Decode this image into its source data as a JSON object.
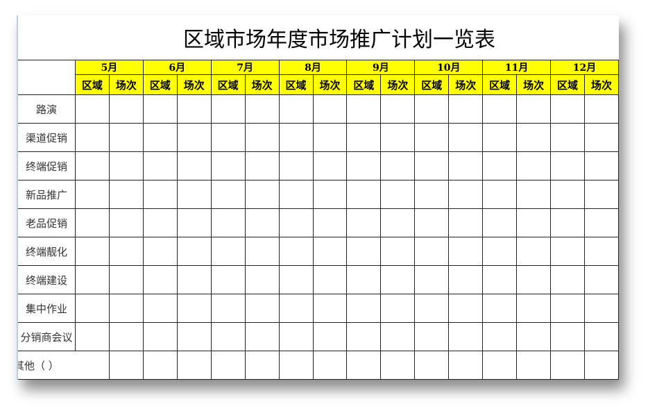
{
  "title": "区域市场年度市场推广计划一览表",
  "months": [
    "5月",
    "6月",
    "7月",
    "8月",
    "9月",
    "10月",
    "11月",
    "12月"
  ],
  "sub_headers": [
    "区域",
    "场次"
  ],
  "rows": [
    "路演",
    "渠道促销",
    "终端促销",
    "新品推广",
    "老品促销",
    "终端靓化",
    "终端建设",
    "集中作业",
    "分销商会议",
    "其他（      ）"
  ],
  "colors": {
    "header_fill": "#ffff00",
    "border": "#222222"
  }
}
